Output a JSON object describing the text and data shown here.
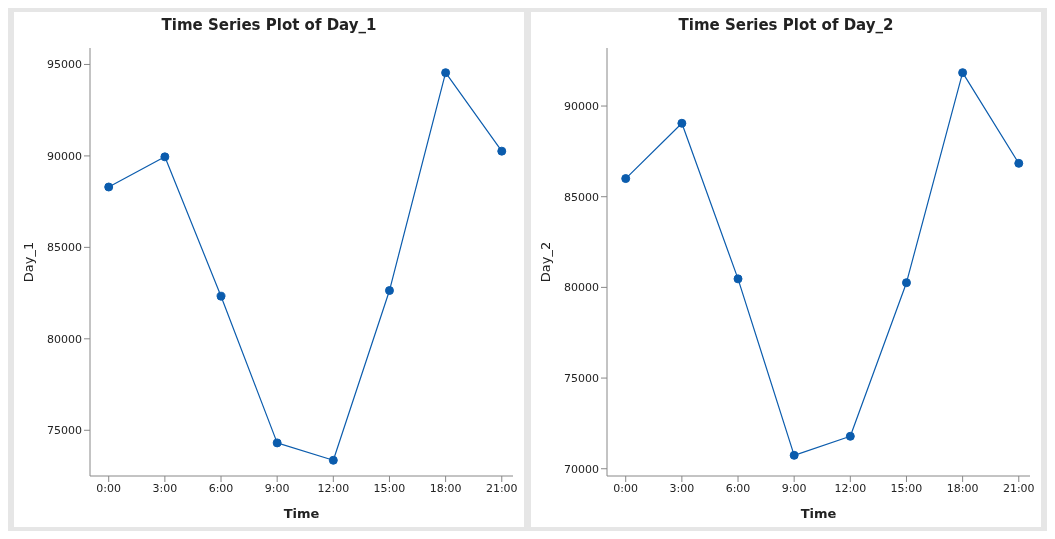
{
  "chart_data": [
    {
      "type": "line",
      "title": "Time Series Plot of Day_1",
      "xlabel": "Time",
      "ylabel": "Day_1",
      "x": [
        0,
        3,
        6,
        9,
        12,
        15,
        18,
        21
      ],
      "series": [
        {
          "color": "#0b5cad",
          "values": [
            88300,
            89950,
            82330,
            74310,
            73360,
            82640,
            94550,
            90260
          ]
        }
      ],
      "xlim": [
        -1,
        21.6
      ],
      "xticks": [
        {
          "value": 0,
          "label": "0:00"
        },
        {
          "value": 3,
          "label": "3:00"
        },
        {
          "value": 6,
          "label": "6:00"
        },
        {
          "value": 9,
          "label": "9:00"
        },
        {
          "value": 12,
          "label": "12:00"
        },
        {
          "value": 15,
          "label": "15:00"
        },
        {
          "value": 18,
          "label": "18:00"
        },
        {
          "value": 21,
          "label": "21:00"
        }
      ],
      "ylim": [
        72500,
        95900
      ],
      "yticks": [
        75000,
        80000,
        85000,
        90000,
        95000
      ],
      "marker": "circle",
      "line_style": "solid",
      "grid": false,
      "legend": false
    },
    {
      "type": "line",
      "title": "Time Series Plot of Day_2",
      "xlabel": "Time",
      "ylabel": "Day_2",
      "x": [
        0,
        3,
        6,
        9,
        12,
        15,
        18,
        21
      ],
      "series": [
        {
          "color": "#0b5cad",
          "values": [
            86000,
            89050,
            80470,
            70740,
            71790,
            80260,
            91840,
            86840
          ]
        }
      ],
      "xlim": [
        -1,
        21.6
      ],
      "xticks": [
        {
          "value": 0,
          "label": "0:00"
        },
        {
          "value": 3,
          "label": "3:00"
        },
        {
          "value": 6,
          "label": "6:00"
        },
        {
          "value": 9,
          "label": "9:00"
        },
        {
          "value": 12,
          "label": "12:00"
        },
        {
          "value": 15,
          "label": "15:00"
        },
        {
          "value": 18,
          "label": "18:00"
        },
        {
          "value": 21,
          "label": "21:00"
        }
      ],
      "ylim": [
        69600,
        93200
      ],
      "yticks": [
        70000,
        75000,
        80000,
        85000,
        90000
      ],
      "marker": "circle",
      "line_style": "solid",
      "grid": false,
      "legend": false
    }
  ]
}
